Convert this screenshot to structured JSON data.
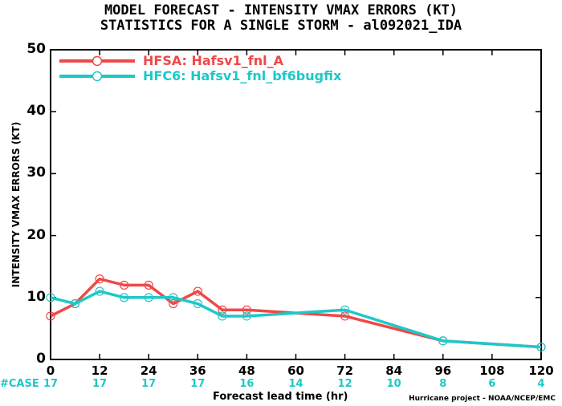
{
  "titles": {
    "line1": "MODEL FORECAST - INTENSITY VMAX ERRORS (KT)",
    "line2": "STATISTICS FOR A SINGLE STORM - al092021_IDA"
  },
  "case_label": "#CASE",
  "credit": "Hurricane project - NOAA/NCEP/EMC",
  "colors": {
    "hfsa": "#f04848",
    "hfc6": "#1ec8c8",
    "case": "#1ec8c8"
  },
  "chart_data": {
    "type": "line",
    "title": "MODEL FORECAST - INTENSITY VMAX ERRORS (KT)",
    "subtitle": "STATISTICS FOR A SINGLE STORM - al092021_IDA",
    "xlabel": "Forecast lead time (hr)",
    "ylabel": "INTENSITY VMAX ERRORS (KT)",
    "xlim": [
      0,
      120
    ],
    "ylim": [
      0,
      50
    ],
    "xticks": [
      0,
      12,
      24,
      36,
      48,
      60,
      72,
      84,
      96,
      108,
      120
    ],
    "yticks": [
      0,
      10,
      20,
      30,
      40,
      50
    ],
    "grid": false,
    "legend_position": "top-left",
    "series": [
      {
        "name": "HFSA: Hafsv1_fnl_A",
        "color": "#f04848",
        "x": [
          0,
          6,
          12,
          18,
          24,
          30,
          36,
          42,
          48,
          72,
          96,
          120
        ],
        "y": [
          7,
          9,
          13,
          12,
          12,
          9,
          11,
          8,
          8,
          7,
          3,
          2
        ]
      },
      {
        "name": "HFC6: Hafsv1_fnl_bf6bugfix",
        "color": "#1ec8c8",
        "x": [
          0,
          6,
          12,
          18,
          24,
          30,
          36,
          42,
          48,
          72,
          96,
          120
        ],
        "y": [
          10,
          9,
          11,
          10,
          10,
          10,
          9,
          7,
          7,
          8,
          3,
          2
        ]
      }
    ],
    "case_counts": [
      {
        "x": 0,
        "n": "17"
      },
      {
        "x": 12,
        "n": "17"
      },
      {
        "x": 24,
        "n": "17"
      },
      {
        "x": 36,
        "n": "17"
      },
      {
        "x": 48,
        "n": "16"
      },
      {
        "x": 60,
        "n": "14"
      },
      {
        "x": 72,
        "n": "12"
      },
      {
        "x": 84,
        "n": "10"
      },
      {
        "x": 96,
        "n": "8"
      },
      {
        "x": 108,
        "n": "6"
      },
      {
        "x": 120,
        "n": "4"
      }
    ]
  }
}
